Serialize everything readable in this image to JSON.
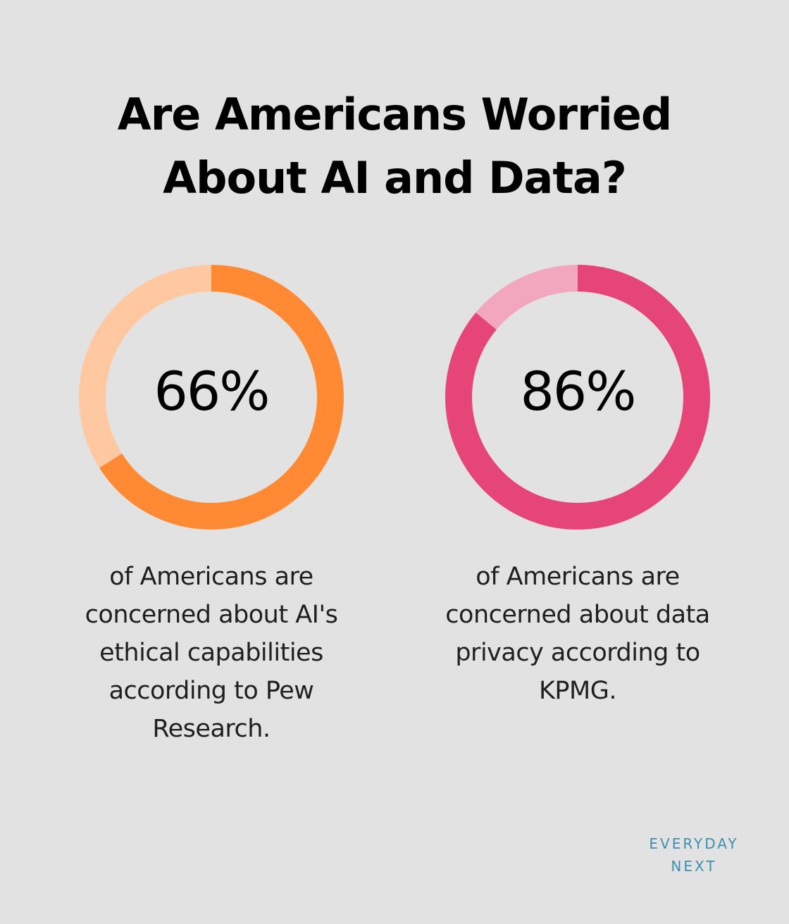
{
  "title": {
    "line1": "Are Americans Worried",
    "line2": "About AI and Data?"
  },
  "chart_data": [
    {
      "type": "pie",
      "value": 66,
      "label": "66%",
      "caption_lines": [
        "of Americans are",
        "concerned about AI's",
        "ethical capabilities",
        "according to Pew",
        "Research."
      ],
      "color": "#ff8a33",
      "track_color": "#ffc8a0"
    },
    {
      "type": "pie",
      "value": 86,
      "label": "86%",
      "caption_lines": [
        "of Americans are",
        "concerned about data",
        "privacy according to",
        "KPMG."
      ],
      "color": "#e54577",
      "track_color": "#f3a7bf"
    }
  ],
  "logo": {
    "line1": "EVERYDAY",
    "line2": "NEXT"
  }
}
